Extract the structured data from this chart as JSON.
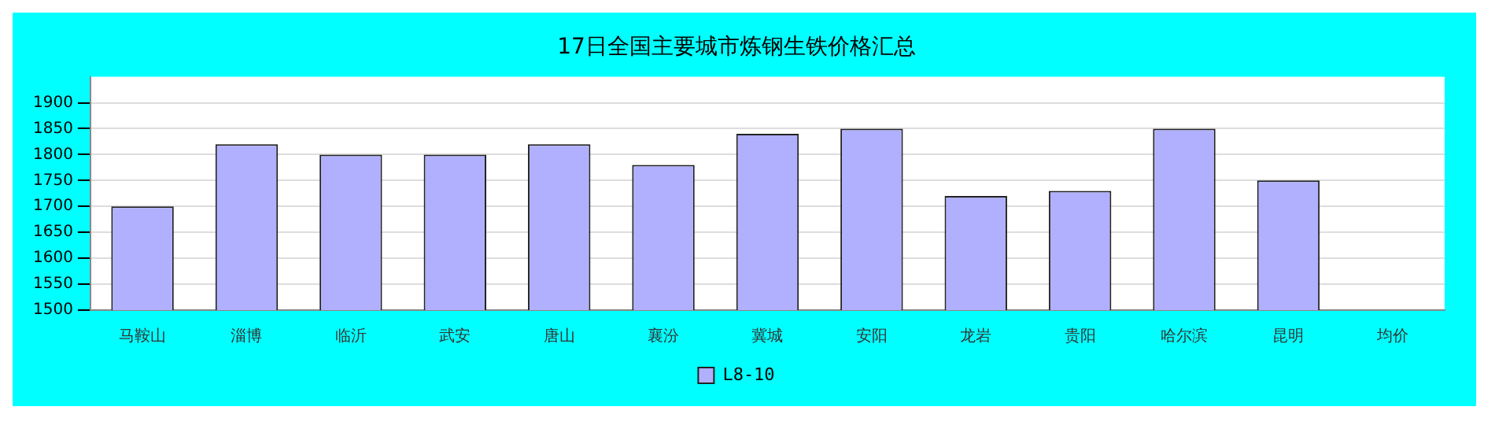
{
  "chart_data": {
    "type": "bar",
    "title": "17日全国主要城市炼钢生铁价格汇总",
    "categories": [
      "马鞍山",
      "淄博",
      "临沂",
      "武安",
      "唐山",
      "襄汾",
      "冀城",
      "安阳",
      "龙岩",
      "贵阳",
      "哈尔滨",
      "昆明",
      "均价"
    ],
    "series": [
      {
        "name": "L8-10",
        "color": "#b0b0ff",
        "values": [
          1700,
          1820,
          1800,
          1800,
          1820,
          1780,
          1840,
          1850,
          1720,
          1730,
          1850,
          1750,
          null
        ]
      }
    ],
    "ylim": [
      1500,
      1950
    ],
    "yticks": [
      1500,
      1550,
      1600,
      1650,
      1700,
      1750,
      1800,
      1850,
      1900
    ],
    "grid": "y",
    "legend": "bottom"
  }
}
